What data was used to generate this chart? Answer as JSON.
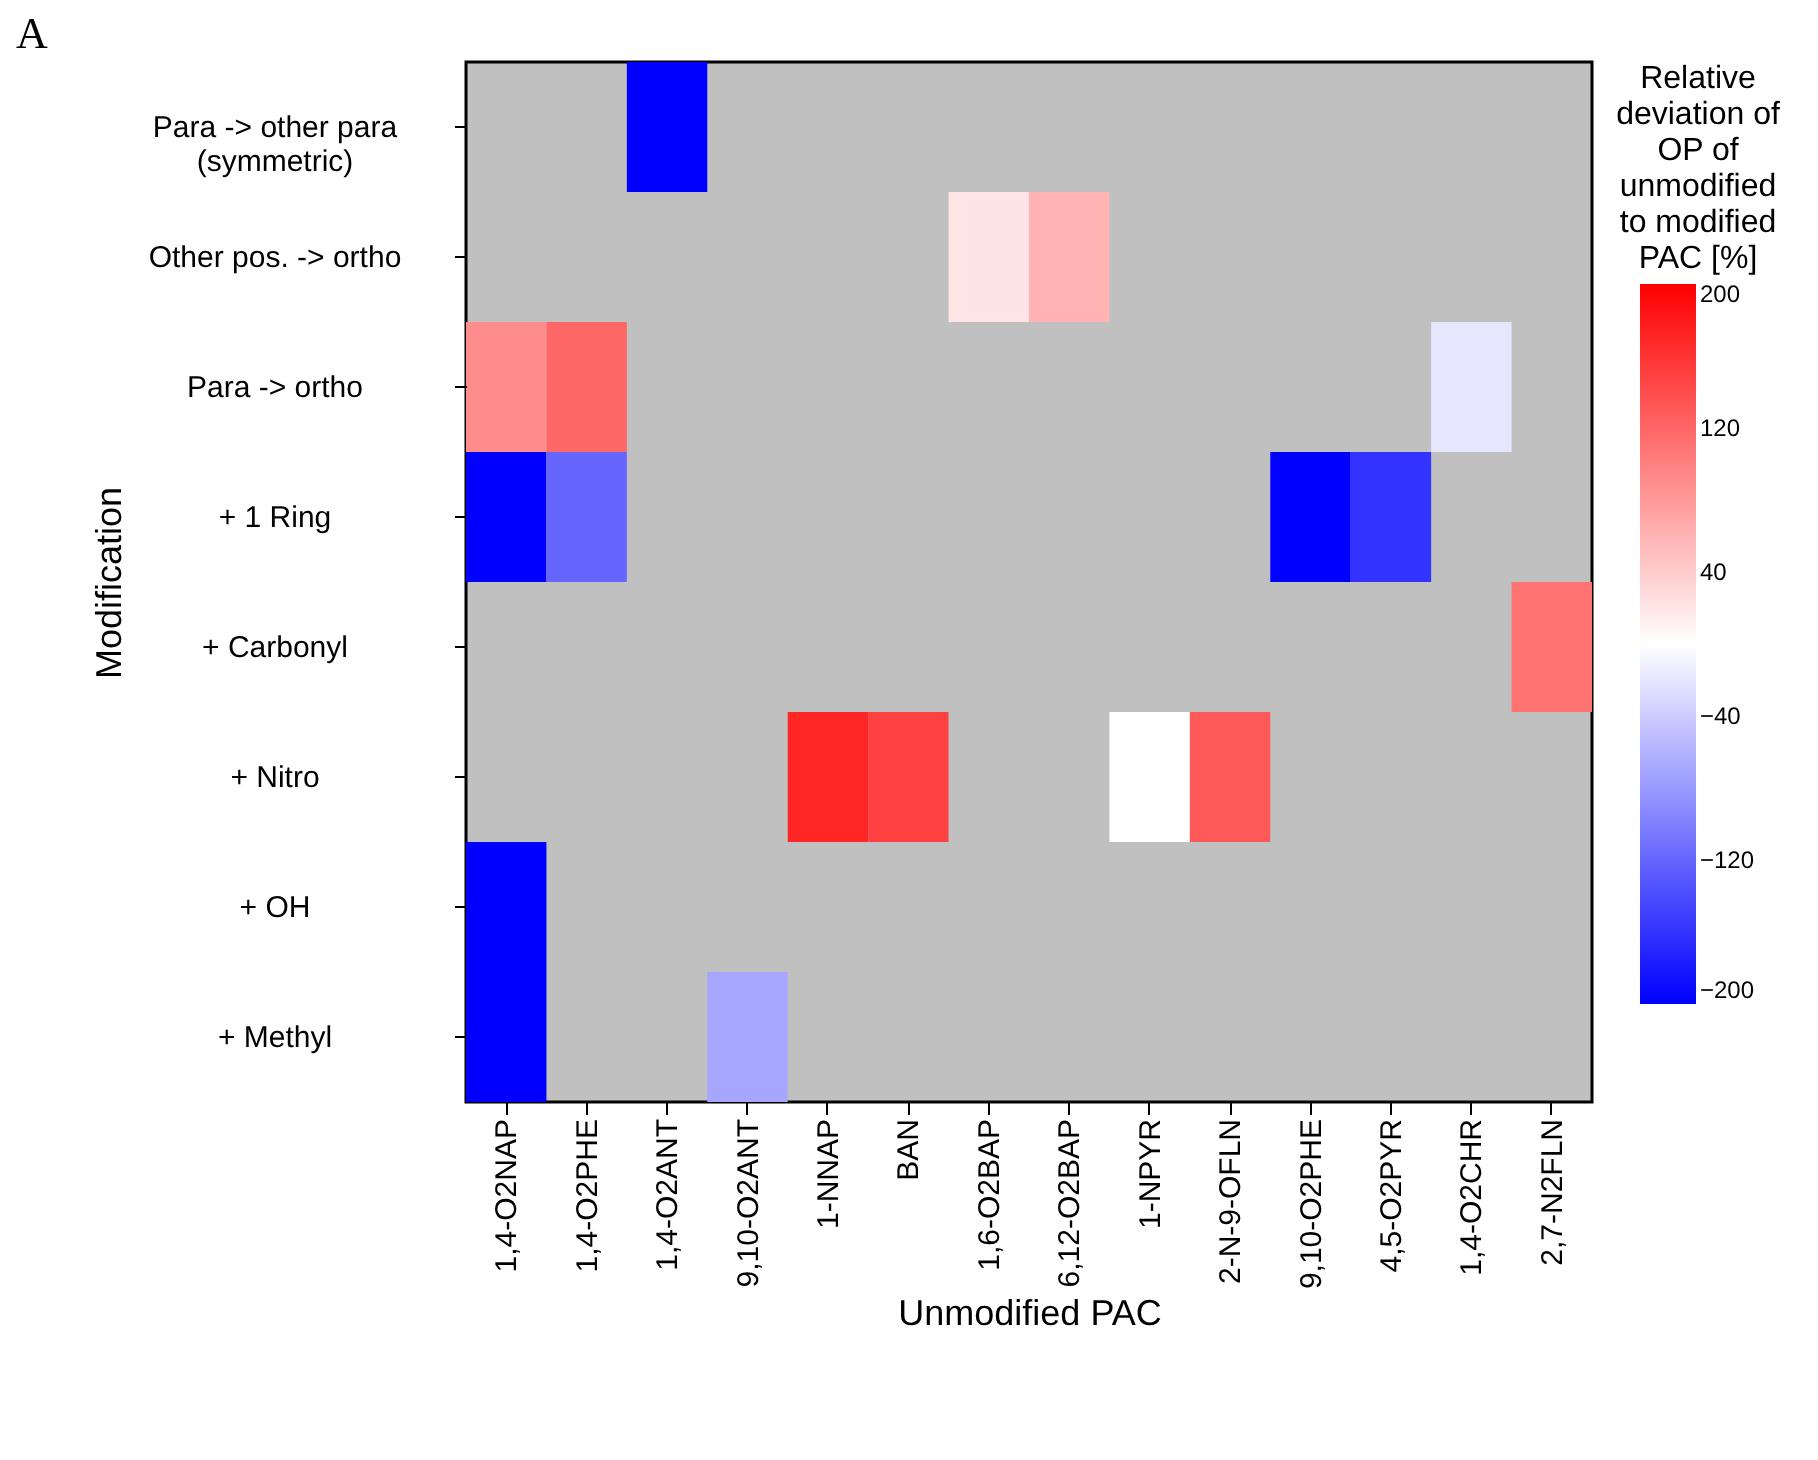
{
  "chart_data": {
    "type": "heatmap",
    "title": "A",
    "xlabel": "Unmodified PAC",
    "ylabel": "Modification",
    "clabel": "Relative deviation of OP of unmodified to modified PAC  [%]",
    "categories": [
      "1,4-O2NAP",
      "1,4-O2PHE",
      "1,4-O2ANT",
      "9,10-O2ANT",
      "1-NNAP",
      "BAN",
      "1,6-O2BAP",
      "6,12-O2BAP",
      "1-NPYR",
      "2-N-9-OFLN",
      "9,10-O2PHE",
      "4,5-O2PYR",
      "1,4-O2CHR",
      "2,7-N2FLN"
    ],
    "y_categories": [
      "Para -> other para (symmetric)",
      "Other pos. -> ortho",
      "Para -> ortho",
      "+ 1 Ring",
      "+ Carbonyl",
      "+ Nitro",
      "+ OH",
      "+ Methyl"
    ],
    "cells": [
      [
        null,
        null,
        -200,
        null,
        null,
        null,
        null,
        null,
        null,
        null,
        null,
        null,
        null,
        null
      ],
      [
        null,
        null,
        null,
        null,
        null,
        null,
        20,
        60,
        null,
        null,
        null,
        null,
        null,
        null
      ],
      [
        90,
        120,
        null,
        null,
        null,
        null,
        null,
        null,
        null,
        null,
        null,
        null,
        -20,
        null
      ],
      [
        -200,
        -120,
        null,
        null,
        null,
        null,
        null,
        null,
        null,
        null,
        -200,
        -160,
        null,
        null
      ],
      [
        null,
        null,
        null,
        null,
        null,
        null,
        null,
        null,
        null,
        null,
        null,
        null,
        null,
        110
      ],
      [
        null,
        null,
        null,
        null,
        170,
        150,
        null,
        null,
        0,
        130,
        null,
        null,
        null,
        null
      ],
      [
        -200,
        null,
        null,
        null,
        null,
        null,
        null,
        null,
        null,
        null,
        null,
        null,
        null,
        null
      ],
      [
        -200,
        null,
        null,
        -70,
        null,
        null,
        null,
        null,
        null,
        null,
        null,
        null,
        null,
        null
      ]
    ],
    "clim": [
      -200,
      200
    ],
    "cticks": [
      -200,
      -120,
      -40,
      40,
      120,
      200
    ]
  }
}
